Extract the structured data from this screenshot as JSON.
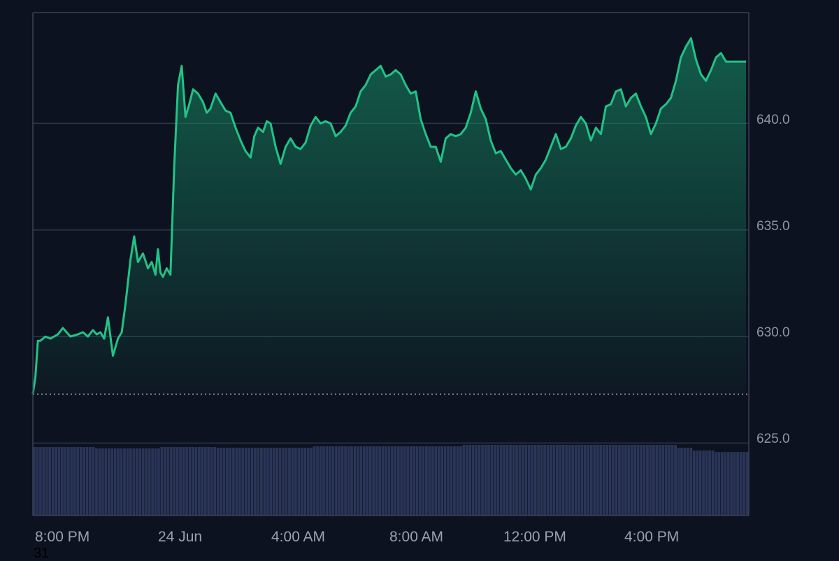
{
  "colors": {
    "background": "#0d1220",
    "price_line": "#21c386",
    "area_fill": "#168561",
    "volume": "#2a3557",
    "gridline": "#2d3748",
    "axis_border": "#3a4253",
    "baseline": "#c8cbd2",
    "tick_text": "#8e94a3"
  },
  "stray_label": "31",
  "chart_data": [
    {
      "type": "area",
      "x_axis": {
        "tick_labels": [
          "8:00 PM",
          "24 Jun",
          "4:00 AM",
          "8:00 AM",
          "12:00 PM",
          "4:00 PM"
        ]
      },
      "y_axis": {
        "position": "right",
        "tick_labels": [
          "640.0",
          "635.0",
          "630.0",
          "625.0"
        ],
        "ticks": [
          640,
          635,
          630,
          625
        ],
        "range": [
          621.6,
          645.2
        ]
      },
      "baseline_value": 627.3,
      "grid": "horizontal",
      "series": [
        {
          "time_hours_from_start": [
            0.0,
            0.1,
            0.2,
            0.3,
            0.5,
            0.7,
            1.0,
            1.2,
            1.5,
            1.8,
            2.0,
            2.2,
            2.4,
            2.55,
            2.7,
            2.85,
            3.0,
            3.2,
            3.4,
            3.55,
            3.7,
            3.9,
            4.05,
            4.2,
            4.4,
            4.6,
            4.75,
            4.9,
            5.0,
            5.1,
            5.2,
            5.35,
            5.5,
            5.65,
            5.8,
            5.95,
            6.1,
            6.25,
            6.4,
            6.6,
            6.8,
            6.95,
            7.1,
            7.3,
            7.5,
            7.7,
            7.9,
            8.1,
            8.3,
            8.5,
            8.7,
            8.85,
            9.0,
            9.2,
            9.35,
            9.5,
            9.7,
            9.9,
            10.1,
            10.3,
            10.5,
            10.7,
            10.9,
            11.1,
            11.3,
            11.5,
            11.7,
            11.9,
            12.1,
            12.3,
            12.5,
            12.7,
            12.9,
            13.1,
            13.3,
            13.5,
            13.7,
            13.9,
            14.1,
            14.3,
            14.5,
            14.7,
            14.9,
            15.1,
            15.3,
            15.5,
            15.7,
            15.9,
            16.1,
            16.3,
            16.5,
            16.7,
            16.9,
            17.1,
            17.3,
            17.5,
            17.7,
            17.9,
            18.1,
            18.3,
            18.5,
            18.7,
            18.9,
            19.1,
            19.3,
            19.5,
            19.7,
            19.9,
            20.1,
            20.3,
            20.5,
            20.7,
            20.9,
            21.1,
            21.3,
            21.5,
            21.7,
            21.9,
            22.1,
            22.3,
            22.5,
            22.7,
            22.9,
            23.1,
            23.3,
            23.5,
            23.7,
            23.9,
            24.1,
            24.3,
            24.5,
            24.7,
            24.9,
            25.1,
            25.3,
            25.5,
            25.7,
            25.9,
            26.1,
            26.3,
            26.5,
            26.7,
            26.9,
            27.1,
            27.3,
            27.5,
            27.7,
            27.9,
            28.1,
            28.3,
            28.5,
            28.7,
            28.9,
            29.1,
            29.3,
            29.5,
            29.7,
            29.9,
            30.1,
            30.3,
            30.5,
            30.7,
            30.9,
            31.1,
            31.3,
            31.5,
            31.7,
            31.9,
            32.1,
            32.3,
            32.5,
            32.7,
            32.9,
            33.1,
            33.3,
            33.5,
            33.7,
            33.9,
            34.1,
            34.3,
            34.5,
            34.7,
            34.9,
            35.1,
            35.3,
            35.5,
            35.7,
            35.9,
            36.1,
            36.3,
            36.5,
            36.7,
            36.9,
            37.1,
            37.3,
            37.5,
            37.7,
            37.9,
            38.1,
            38.3,
            38.5,
            38.7,
            38.9,
            39.1,
            39.3,
            39.5,
            39.7,
            39.9,
            40.1,
            40.3,
            40.5,
            40.7,
            40.9,
            41.1,
            41.3,
            41.5,
            41.7,
            41.9,
            42.1,
            42.3,
            42.5,
            42.7,
            42.9,
            43.1,
            43.3,
            43.5,
            43.7,
            43.9,
            44.1,
            44.3,
            44.5,
            44.7,
            44.9,
            45.1,
            45.3,
            45.5,
            45.7,
            45.9,
            46.1,
            46.3,
            46.5,
            46.7,
            46.9,
            47.1,
            47.3,
            47.5,
            47.7,
            47.9,
            48.1,
            48.3,
            48.5,
            48.7,
            48.9,
            49.1,
            49.3,
            49.5,
            49.7,
            49.9,
            50.1,
            50.3,
            50.5,
            50.7,
            50.9,
            51.1,
            51.3,
            51.5,
            51.7,
            51.9,
            52.1,
            52.3,
            52.5,
            52.7,
            52.9,
            53.1,
            53.3,
            53.5,
            53.7,
            53.9,
            54.1,
            54.3,
            54.5,
            54.7,
            54.9,
            55.1,
            55.3,
            55.5,
            55.7,
            55.9,
            56.1,
            56.3,
            56.5,
            56.7,
            56.9,
            57.1,
            57.3,
            57.5,
            57.7,
            57.9,
            58.1,
            58.3,
            58.5,
            58.7,
            58.9,
            59.1,
            59.3,
            59.5,
            59.7,
            59.9,
            60.1,
            60.3,
            60.5,
            60.7,
            60.9,
            61.1,
            61.3,
            61.5,
            61.7,
            61.9,
            62.1,
            62.3,
            62.5,
            62.7,
            62.9,
            63.1,
            63.3,
            63.5,
            63.7,
            63.9,
            64.1,
            64.3,
            64.5,
            64.7,
            64.9,
            65.1,
            65.3,
            65.5,
            65.7,
            65.9,
            66.1,
            66.3,
            66.5,
            66.7,
            66.9,
            67.1,
            67.3,
            67.5,
            67.7,
            67.9,
            68.1,
            68.3,
            68.5,
            68.7,
            68.9,
            69.1,
            69.3,
            69.5,
            69.7,
            69.9
          ],
          "values": [
            627.3,
            628.1,
            629.8,
            629.8,
            630.0,
            629.9,
            630.1,
            630.4,
            630.0,
            630.1,
            630.2,
            630.0,
            630.3,
            630.1,
            630.2,
            629.9,
            630.9,
            629.1,
            629.9,
            630.2,
            631.5,
            633.6,
            634.7,
            633.5,
            633.9,
            633.2,
            633.5,
            632.9,
            634.1,
            633.0,
            632.8,
            633.2,
            632.9,
            638.0,
            641.8,
            642.7,
            640.3,
            640.9,
            641.6,
            641.4,
            641.0,
            640.5,
            640.7,
            641.4,
            641.0,
            640.6,
            640.5,
            639.8,
            639.2,
            638.7,
            638.4,
            639.4,
            639.8,
            639.6,
            640.1,
            640.0,
            638.9,
            638.1,
            638.9,
            639.3,
            638.9,
            638.8,
            639.1,
            639.9,
            640.3,
            640.0,
            640.1,
            640.0,
            639.4,
            639.6,
            639.9,
            640.5,
            640.8,
            641.5,
            641.8,
            642.3,
            642.5,
            642.7,
            642.2,
            642.3,
            642.5,
            642.3,
            641.8,
            641.4,
            641.5,
            640.2,
            639.5,
            638.9,
            638.9,
            638.2,
            639.3,
            639.5,
            639.4,
            639.5,
            639.8,
            640.5,
            641.5,
            640.7,
            640.2,
            639.2,
            638.6,
            638.7,
            638.3,
            637.9,
            637.6,
            637.8,
            637.4,
            636.9,
            637.6,
            637.9,
            638.3,
            638.9,
            639.5,
            638.8,
            638.9,
            639.3,
            639.9,
            640.3,
            640.0,
            639.2,
            639.8,
            639.5,
            640.8,
            640.9,
            641.5,
            641.6,
            640.8,
            641.2,
            641.4,
            640.8,
            640.3,
            639.5,
            640.0,
            640.7,
            640.9,
            641.2,
            642.0,
            643.1,
            643.6,
            644.0,
            643.0,
            642.3,
            642.0,
            642.5,
            643.1,
            643.3,
            642.9,
            642.9,
            642.9,
            642.9,
            642.9,
            642.9,
            642.9,
            642.9,
            642.9,
            642.9,
            642.9,
            642.9,
            642.9,
            642.9,
            642.9,
            642.9,
            642.9,
            642.9,
            642.9,
            642.9,
            642.9,
            642.9,
            642.9,
            642.9,
            642.9,
            642.9,
            642.9,
            642.9,
            642.9,
            642.9,
            642.9,
            642.9,
            642.9,
            642.9,
            642.9,
            642.9,
            642.9,
            642.9,
            642.9,
            642.9,
            642.9,
            642.9,
            642.9,
            642.9,
            642.9,
            642.9,
            642.9,
            642.9,
            642.9,
            642.9,
            642.9,
            642.9,
            642.9,
            642.9,
            642.9,
            642.9,
            642.9,
            642.9,
            642.9,
            642.9,
            642.9,
            642.9,
            642.9,
            642.9,
            642.9,
            642.9,
            642.9,
            642.9,
            642.9,
            642.9,
            642.9,
            642.9,
            642.9,
            642.9,
            642.9,
            642.9,
            642.9,
            642.9,
            642.9,
            642.9,
            642.9,
            642.9,
            642.9,
            642.9,
            642.9,
            642.9,
            642.9,
            642.9,
            642.9,
            642.9,
            642.9,
            642.9,
            642.9,
            642.9,
            642.9,
            642.9,
            642.9,
            642.9,
            642.9,
            642.9,
            642.9,
            642.9,
            642.9,
            642.9,
            642.9,
            642.9,
            642.9,
            642.9,
            642.9,
            642.9,
            642.9,
            642.9,
            642.9,
            642.9,
            642.9,
            642.9,
            642.9,
            642.9,
            642.9,
            642.9,
            642.9,
            642.9,
            642.9,
            642.9,
            642.9,
            642.9,
            642.9,
            642.9,
            642.9,
            642.9,
            642.9,
            642.9,
            642.9,
            642.9,
            642.9,
            642.9,
            642.9,
            642.9,
            642.9,
            642.9,
            642.9,
            642.9,
            642.9,
            642.9,
            642.9,
            642.9,
            642.9,
            642.9,
            642.9,
            642.9,
            642.9,
            642.9,
            642.9,
            642.9,
            642.9,
            642.9,
            642.9,
            642.9,
            642.9,
            642.9,
            642.9,
            642.9,
            642.9,
            642.9,
            642.9,
            642.9,
            642.9,
            642.9,
            642.9,
            642.9,
            642.9,
            642.9,
            642.9,
            642.9,
            642.9,
            642.9,
            642.9,
            642.9,
            642.9,
            642.9,
            642.9,
            642.9,
            642.9,
            642.9,
            642.9,
            642.9,
            642.9,
            642.9,
            642.9,
            642.9,
            642.9,
            642.9,
            642.9,
            642.9,
            642.9,
            642.9,
            642.9,
            642.9,
            642.9,
            642.9,
            642.9,
            642.9,
            642.9,
            642.9,
            642.9,
            642.9,
            642.9
          ]
        }
      ],
      "tick_positions_hours": [
        0.0,
        1.0,
        2.0,
        3.0,
        4.0,
        5.0
      ],
      "x_range_hours": [
        0.0,
        5.0
      ]
    },
    {
      "type": "bar",
      "name_hidden": true,
      "volume_relative_levels": [
        {
          "until": 0.087,
          "level": 0.97
        },
        {
          "until": 0.18,
          "level": 0.95
        },
        {
          "until": 0.256,
          "level": 0.97
        },
        {
          "until": 0.39,
          "level": 0.96
        },
        {
          "until": 0.6,
          "level": 0.98
        },
        {
          "until": 0.9,
          "level": 1.0
        },
        {
          "until": 0.92,
          "level": 0.96
        },
        {
          "until": 0.95,
          "level": 0.92
        },
        {
          "until": 1.0,
          "level": 0.9
        }
      ]
    }
  ]
}
